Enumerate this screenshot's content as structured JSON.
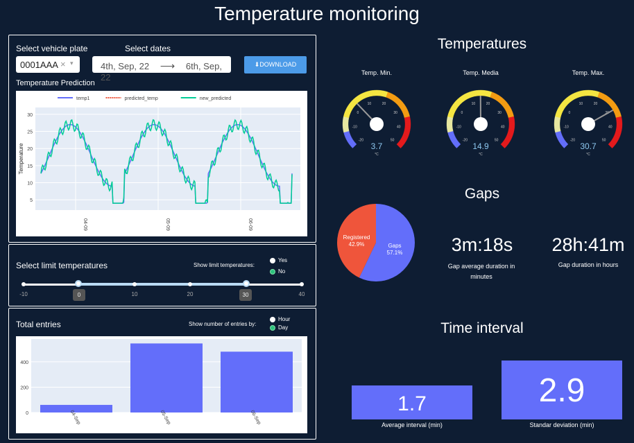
{
  "header": {
    "title": "Temperature monitoring"
  },
  "filters": {
    "vehicle_label": "Select vehicle plate",
    "vehicle_value": "0001AAA",
    "dates_label": "Select dates",
    "start_date": "4th, Sep, 22",
    "end_date": "6th, Sep, 22",
    "download_label": "DOWNLOAD"
  },
  "prediction": {
    "title": "Temperature Prediction",
    "legend": [
      "temp1",
      "predicted_temp",
      "new_predicted"
    ],
    "legend_colors": [
      "#636efa",
      "#ef553b",
      "#00cc96"
    ],
    "ylabel": "Temperature",
    "yticks": [
      "30",
      "25",
      "20",
      "15",
      "10",
      "5"
    ],
    "xticks": [
      "04-09",
      "05-09",
      "06-09"
    ]
  },
  "limits": {
    "title": "Select limit temperatures",
    "show_label": "Show limit temperatures:",
    "options": [
      "Yes",
      "No"
    ],
    "selected": "No",
    "min": -10,
    "max": 40,
    "low": 0,
    "high": 30,
    "marks": [
      "-10",
      "10",
      "20",
      "40"
    ],
    "low_label": "0",
    "high_label": "30"
  },
  "entries": {
    "title": "Total entries",
    "show_label": "Show number of entries by:",
    "options": [
      "Hour",
      "Day"
    ],
    "selected": "Day",
    "yticks": [
      "400",
      "200",
      "0"
    ]
  },
  "chart_data": {
    "type": "bar",
    "categories": [
      "04-Sep",
      "05-Sep",
      "06-Sep"
    ],
    "values": [
      60,
      545,
      480
    ],
    "title": "",
    "xlabel": "",
    "ylabel": "",
    "ylim": [
      0,
      580
    ]
  },
  "temperatures": {
    "title": "Temperatures",
    "gauges": [
      {
        "label": "Temp. Min.",
        "value": "3.7",
        "num": 3.7
      },
      {
        "label": "Temp. Media",
        "value": "14.9",
        "num": 14.9
      },
      {
        "label": "Temp. Max.",
        "value": "30.7",
        "num": 30.7
      }
    ],
    "gauge_ticks": [
      "-20",
      "-10",
      "0",
      "10",
      "20",
      "30",
      "40",
      "50"
    ],
    "unit": "°C"
  },
  "gaps": {
    "title": "Gaps",
    "pie": [
      {
        "label": "Registered",
        "pct": "42.9%",
        "value": 42.9,
        "color": "#ef553b"
      },
      {
        "label": "Gaps",
        "pct": "57.1%",
        "value": 57.1,
        "color": "#636efa"
      }
    ],
    "avg_value": "3m:18s",
    "avg_caption": "Gap average duration in minutes",
    "total_value": "28h:41m",
    "total_caption": "Gap duration in hours"
  },
  "interval": {
    "title": "Time interval",
    "avg_value": "1.7",
    "avg_caption": "Average interval (min)",
    "std_value": "2.9",
    "std_caption": "Standar deviation (min)"
  }
}
